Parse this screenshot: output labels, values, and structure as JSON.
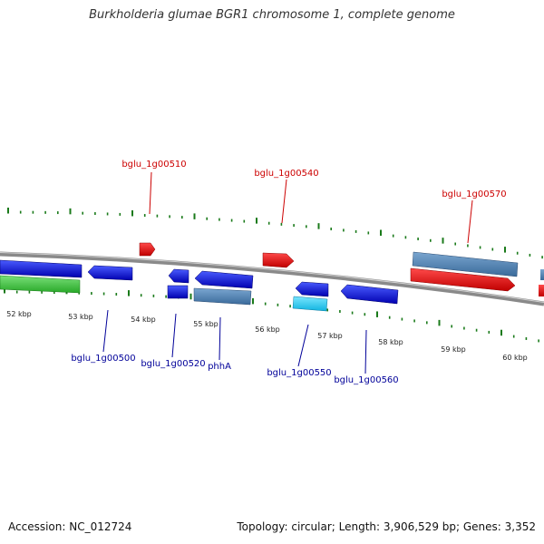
{
  "title": "Burkholderia glumae BGR1 chromosome 1, complete genome",
  "footer": {
    "accession": "Accession: NC_012724",
    "summary": "Topology: circular; Length: 3,906,529 bp; Genes: 3,352"
  },
  "colors": {
    "backbone": "#8a8a8a",
    "tick": "#1a7a1a",
    "forward_gene": "#e00000",
    "reverse_gene": "#0000cc",
    "operon_steel": "#4a7fb0",
    "rna_cyan": "#1ec8f0",
    "cds_green": "#33bb33",
    "label_top": "#cc0000",
    "label_bottom": "#000099"
  },
  "scale_labels": [
    "52 kbp",
    "53 kbp",
    "54 kbp",
    "55 kbp",
    "56 kbp",
    "57 kbp",
    "58 kbp",
    "59 kbp",
    "60 kbp"
  ],
  "top_labels": [
    "bglu_1g00510",
    "bglu_1g00540",
    "bglu_1g00570"
  ],
  "bottom_labels": [
    "bglu_1g00500",
    "bglu_1g00520",
    "phhA",
    "bglu_1g00550",
    "bglu_1g00560"
  ]
}
